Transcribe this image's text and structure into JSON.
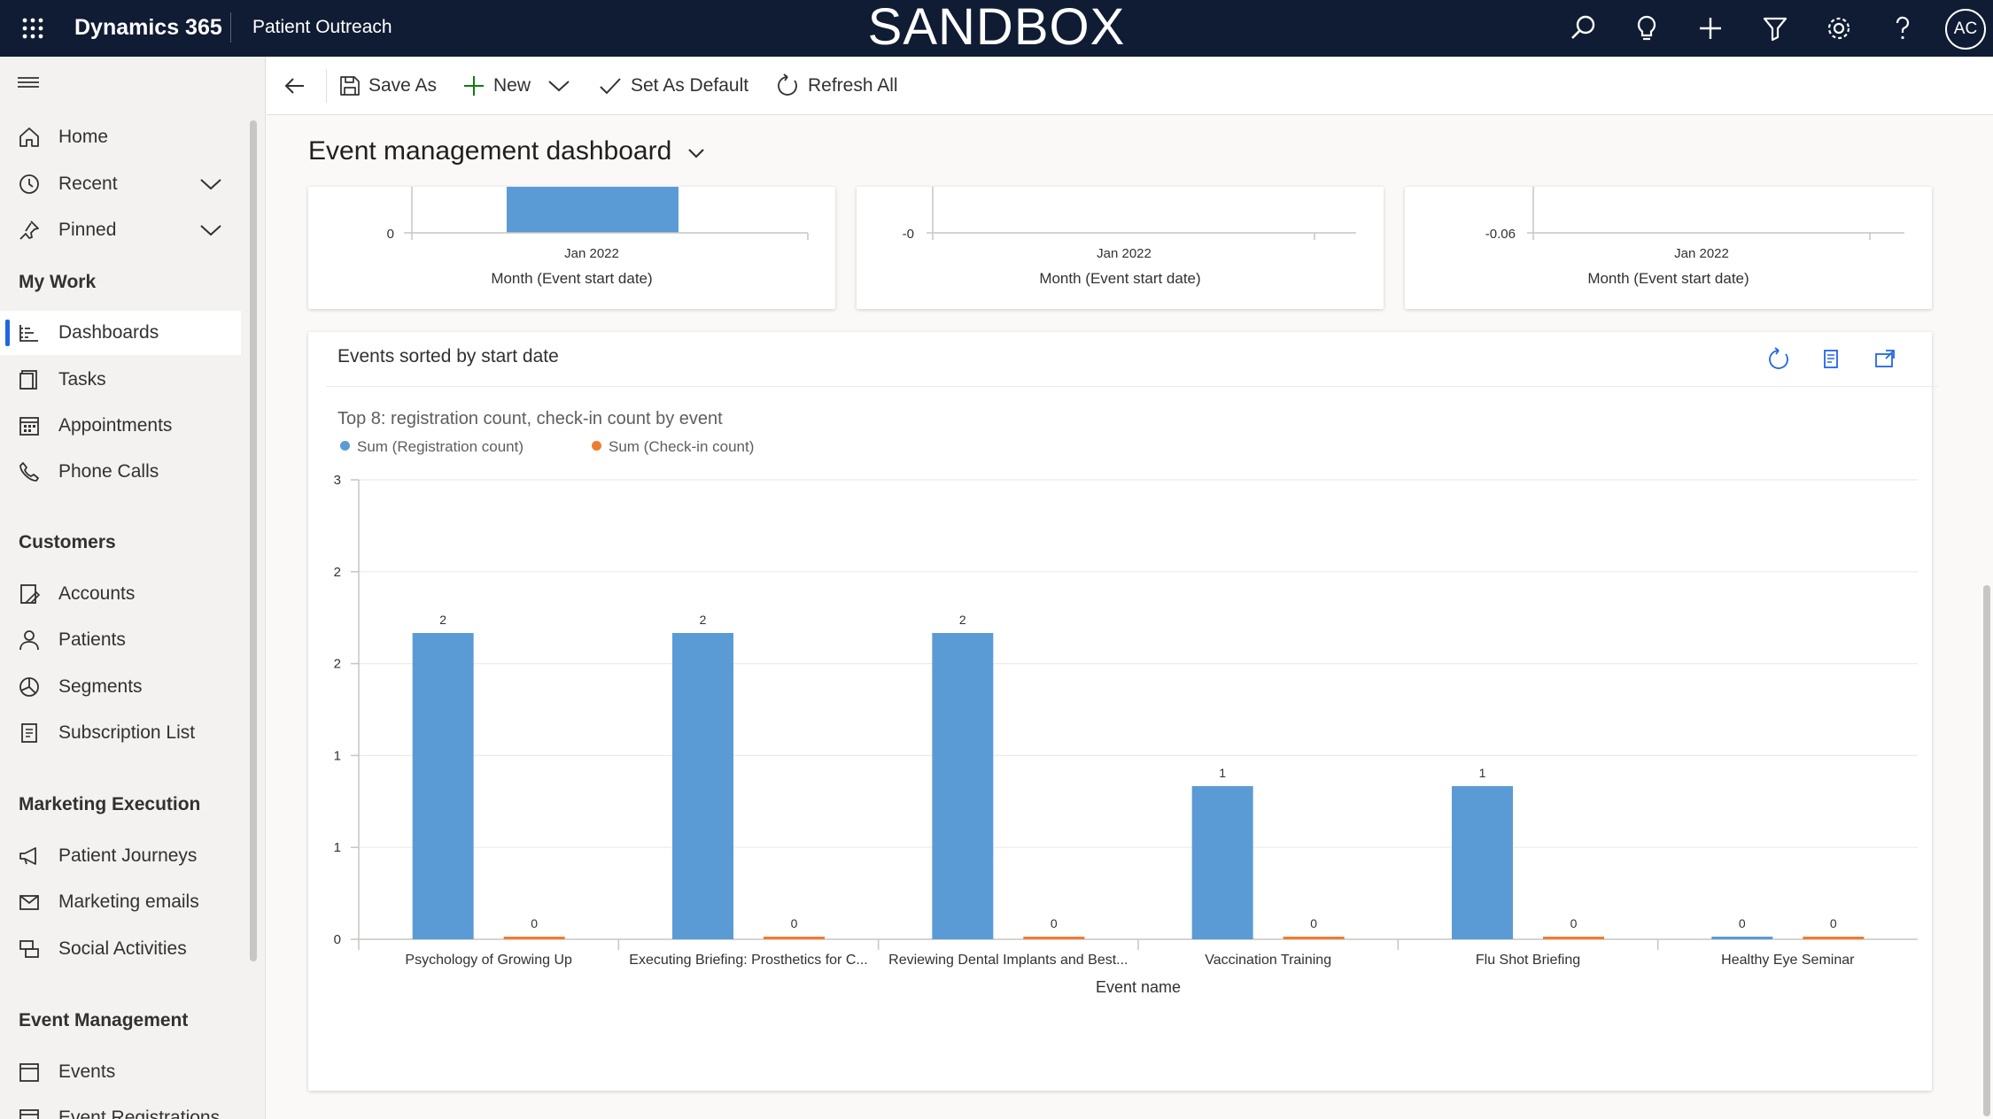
{
  "topbar": {
    "brand": "Dynamics 365",
    "app_name": "Patient Outreach",
    "environment": "SANDBOX",
    "avatar_initials": "AC"
  },
  "sidebar": {
    "top_items": [
      {
        "label": "Home",
        "icon": "home-icon"
      },
      {
        "label": "Recent",
        "icon": "clock-icon"
      },
      {
        "label": "Pinned",
        "icon": "pin-icon"
      }
    ],
    "sections": [
      {
        "title": "My Work",
        "items": [
          "Dashboards",
          "Tasks",
          "Appointments",
          "Phone Calls"
        ]
      },
      {
        "title": "Customers",
        "items": [
          "Accounts",
          "Patients",
          "Segments",
          "Subscription List"
        ]
      },
      {
        "title": "Marketing Execution",
        "items": [
          "Patient Journeys",
          "Marketing emails",
          "Social Activities"
        ]
      },
      {
        "title": "Event Management",
        "items": [
          "Events",
          "Event Registrations"
        ]
      }
    ],
    "active_item": "Dashboards"
  },
  "command_bar": {
    "save_as": "Save As",
    "new": "New",
    "set_as_default": "Set As Default",
    "refresh_all": "Refresh All"
  },
  "dashboard": {
    "title": "Event management dashboard"
  },
  "mini_charts": [
    {
      "zero_label": "0",
      "category": "Jan 2022",
      "axis_title": "Month (Event start date)"
    },
    {
      "zero_label": "-0",
      "category": "Jan 2022",
      "axis_title": "Month (Event start date)"
    },
    {
      "zero_label": "-0.06",
      "category": "Jan 2022",
      "axis_title": "Month (Event start date)"
    }
  ],
  "events_card": {
    "header": "Events sorted by start date"
  },
  "chart_data": {
    "type": "bar",
    "title": "Top 8: registration count, check-in count by event",
    "xlabel": "Event name",
    "ylabel": "",
    "ylim": [
      0,
      3
    ],
    "y_tick_labels": [
      "0",
      "1",
      "1",
      "2",
      "2",
      "3"
    ],
    "categories": [
      "Psychology of Growing Up",
      "Executing Briefing: Prosthetics for C...",
      "Reviewing Dental Implants and Best...",
      "Vaccination Training",
      "Flu Shot Briefing",
      "Healthy Eye Seminar"
    ],
    "series": [
      {
        "name": "Sum (Registration count)",
        "color": "#5b9bd5",
        "values": [
          2,
          2,
          2,
          1,
          1,
          0
        ]
      },
      {
        "name": "Sum (Check-in count)",
        "color": "#ed7d31",
        "values": [
          0,
          0,
          0,
          0,
          0,
          0
        ]
      }
    ],
    "legend": "top-left"
  }
}
